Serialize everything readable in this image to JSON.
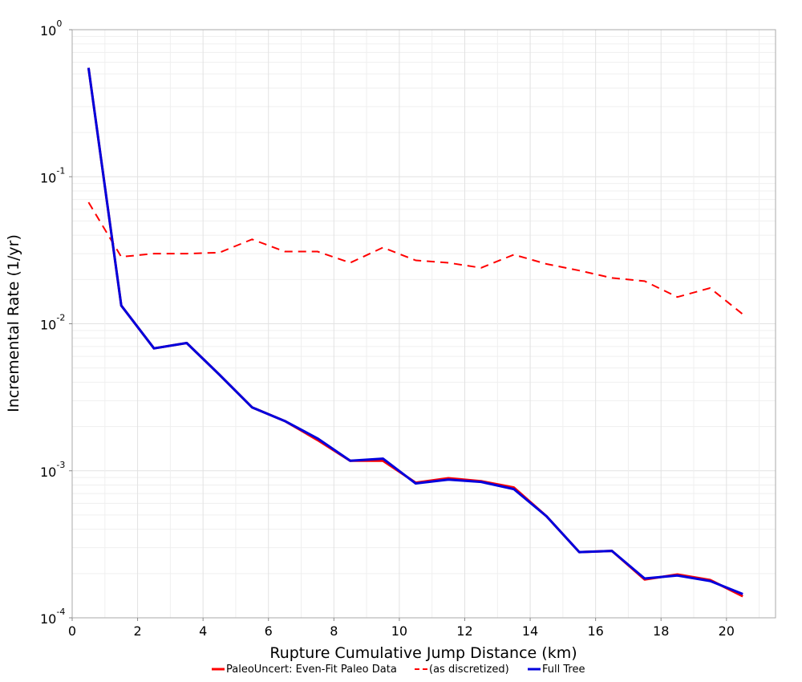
{
  "chart_data": {
    "type": "line",
    "title": "",
    "xlabel": "Rupture Cumulative Jump Distance (km)",
    "ylabel": "Incremental Rate (1/yr)",
    "xlim": [
      0,
      21.5
    ],
    "ylim": [
      0.0001,
      1
    ],
    "yscale": "log",
    "grid": true,
    "legend_position": "bottom",
    "x_ticks": [
      0,
      2,
      4,
      6,
      8,
      10,
      12,
      14,
      16,
      18,
      20
    ],
    "y_ticks": [
      {
        "value": 1,
        "base": "10",
        "exp": "0"
      },
      {
        "value": 0.1,
        "base": "10",
        "exp": "-1"
      },
      {
        "value": 0.01,
        "base": "10",
        "exp": "-2"
      },
      {
        "value": 0.001,
        "base": "10",
        "exp": "-3"
      },
      {
        "value": 0.0001,
        "base": "10",
        "exp": "-4"
      }
    ],
    "x": [
      0.5,
      1.5,
      2.5,
      3.5,
      4.5,
      5.5,
      6.5,
      7.5,
      8.5,
      9.5,
      10.5,
      11.5,
      12.5,
      13.5,
      14.5,
      15.5,
      16.5,
      17.5,
      18.5,
      19.5,
      20.5
    ],
    "series": [
      {
        "name": "PaleoUncert: Even-Fit Paleo Data",
        "color": "#ff0000",
        "style": "solid",
        "values": [
          0.55,
          0.0133,
          0.0068,
          0.0074,
          0.0045,
          0.0027,
          0.00218,
          0.00162,
          0.00117,
          0.00117,
          0.00083,
          0.00089,
          0.00085,
          0.00077,
          0.00049,
          0.00028,
          0.000285,
          0.000182,
          0.000197,
          0.000181,
          0.00014
        ]
      },
      {
        "name": "(as discretized)",
        "color": "#ff0000",
        "style": "dashed",
        "values": [
          0.067,
          0.0285,
          0.03,
          0.03,
          0.0305,
          0.0375,
          0.031,
          0.031,
          0.026,
          0.033,
          0.027,
          0.026,
          0.024,
          0.0295,
          0.0255,
          0.023,
          0.0205,
          0.0195,
          0.0152,
          0.0175,
          0.0116
        ]
      },
      {
        "name": "Full Tree",
        "color": "#0000dd",
        "style": "solid",
        "values": [
          0.55,
          0.0133,
          0.0068,
          0.0074,
          0.0045,
          0.0027,
          0.00218,
          0.00166,
          0.00117,
          0.00121,
          0.00082,
          0.00087,
          0.00084,
          0.00075,
          0.00049,
          0.00028,
          0.000285,
          0.000185,
          0.000194,
          0.000178,
          0.000145
        ]
      }
    ]
  }
}
